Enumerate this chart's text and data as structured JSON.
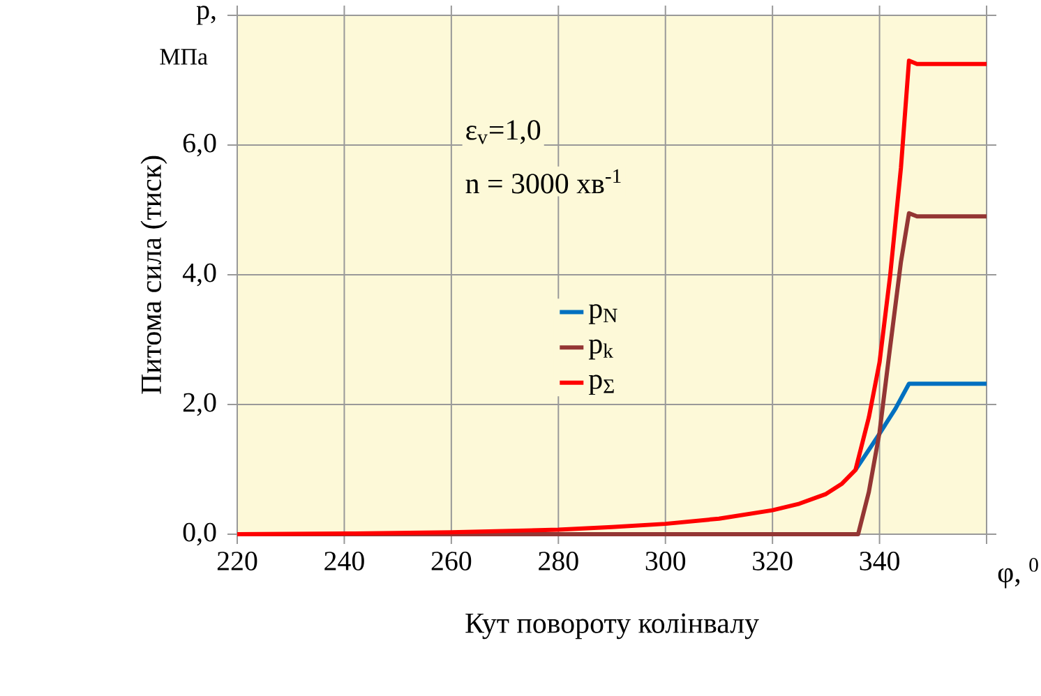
{
  "chart_data": {
    "type": "line",
    "xlabel": "Кут повороту колінвалу",
    "ylabel": "Питома сила (тиск)",
    "annotations": [
      "ε$_{v}$=1,0",
      "n = 3000 хв$^{-1}$",
      "МПа",
      "φ, $^{0}$"
    ],
    "xlim": [
      220,
      360
    ],
    "xticks": [
      220,
      240,
      260,
      280,
      300,
      320,
      340,
      {
        "value": 360,
        "label": null
      }
    ],
    "ylim": [
      0,
      8
    ],
    "yticks": [
      {
        "value": 0,
        "label": "0,0"
      },
      {
        "value": 2,
        "label": "2,0"
      },
      {
        "value": 4,
        "label": "4,0"
      },
      {
        "value": 6,
        "label": "6,0"
      },
      {
        "value": 8,
        "label": "p,"
      }
    ],
    "grid": true,
    "legend": "center",
    "series": [
      {
        "name": "p$_{N}$",
        "color": "#0070c0",
        "x": [
          335.5,
          338,
          340,
          343,
          345.5,
          350,
          360
        ],
        "values": [
          0.99,
          1.3,
          1.55,
          1.94,
          2.32,
          2.32,
          2.32
        ]
      },
      {
        "name": "p$_{k}$",
        "color": "#943634",
        "x": [
          220,
          300,
          336,
          338,
          340,
          342,
          344,
          345.5,
          347,
          360
        ],
        "values": [
          0,
          0,
          0,
          0.65,
          1.57,
          2.9,
          4.2,
          4.95,
          4.9,
          4.9
        ]
      },
      {
        "name": "p$_{Σ}$",
        "color": "#ff0000",
        "x": [
          220,
          240,
          260,
          280,
          290,
          300,
          310,
          320,
          325,
          330,
          333,
          335.5,
          338,
          340,
          342,
          344,
          345.5,
          347,
          360
        ],
        "values": [
          0,
          0.01,
          0.03,
          0.07,
          0.11,
          0.16,
          0.24,
          0.37,
          0.47,
          0.62,
          0.78,
          0.99,
          1.8,
          2.65,
          4.0,
          5.65,
          7.3,
          7.25,
          7.25
        ]
      }
    ]
  }
}
